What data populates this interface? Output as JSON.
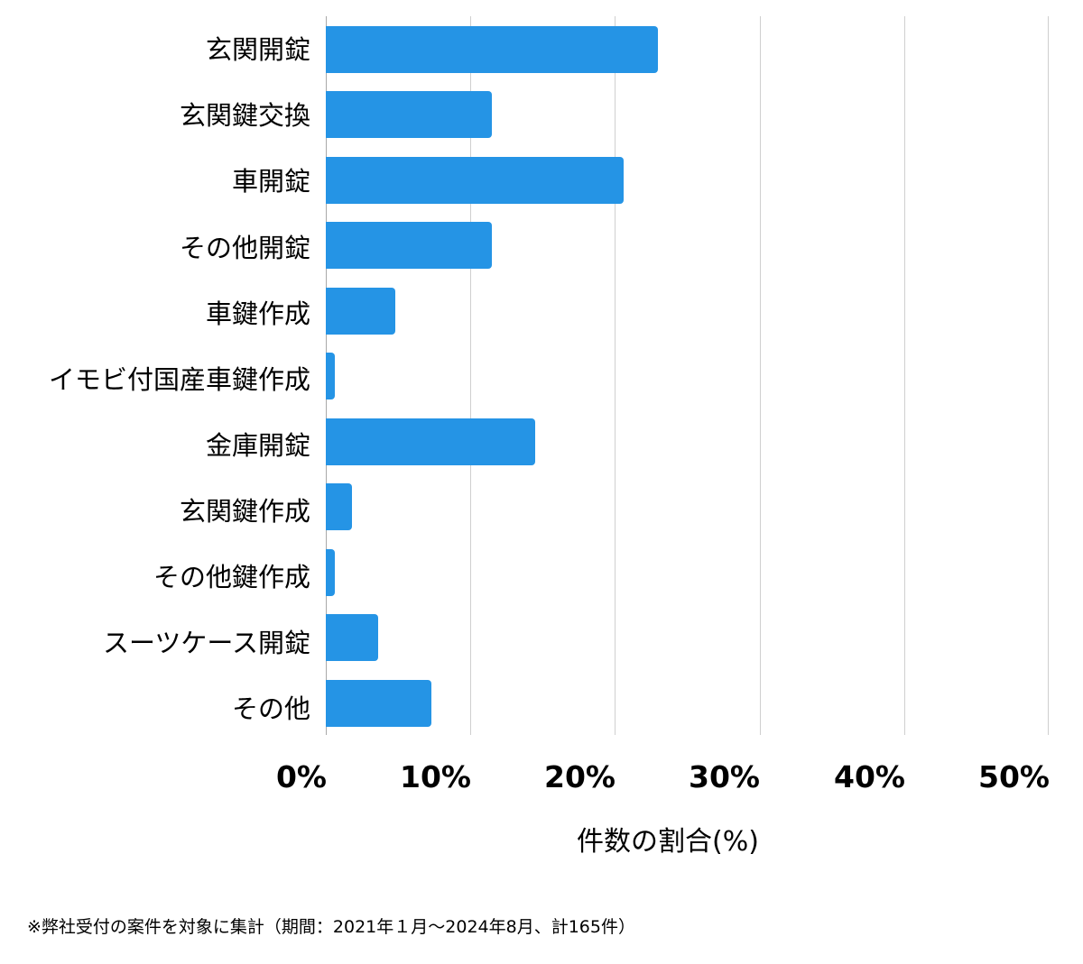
{
  "chart_data": {
    "type": "bar",
    "orientation": "horizontal",
    "title": "",
    "xlabel": "件数の割合(%)",
    "ylabel": "",
    "xlim": [
      0,
      50
    ],
    "x_ticks": [
      "0%",
      "10%",
      "20%",
      "30%",
      "40%",
      "50%"
    ],
    "grid": true,
    "legend": null,
    "categories": [
      "玄関開錠",
      "玄関鍵交換",
      "車開錠",
      "その他開錠",
      "車鍵作成",
      "イモビ付国産車鍵作成",
      "金庫開錠",
      "玄関鍵作成",
      "その他鍵作成",
      "スーツケース開錠",
      "その他"
    ],
    "values": [
      23.0,
      11.5,
      20.6,
      11.5,
      4.8,
      0.6,
      14.5,
      1.8,
      0.6,
      3.6,
      7.3
    ],
    "bar_color": "#2594e5",
    "footnote": "※弊社受付の案件を対象に集計（期間：2021年１月〜2024年8月、計165件）"
  },
  "labels": {
    "cat0": "玄関開錠",
    "cat1": "玄関鍵交換",
    "cat2": "車開錠",
    "cat3": "その他開錠",
    "cat4": "車鍵作成",
    "cat5": "イモビ付国産車鍵作成",
    "cat6": "金庫開錠",
    "cat7": "玄関鍵作成",
    "cat8": "その他鍵作成",
    "cat9": "スーツケース開錠",
    "cat10": "その他",
    "tick0": "0%",
    "tick1": "10%",
    "tick2": "20%",
    "tick3": "30%",
    "tick4": "40%",
    "tick5": "50%",
    "xlabel": "件数の割合(%)",
    "footnote": "※弊社受付の案件を対象に集計（期間：2021年１月〜2024年8月、計165件）"
  }
}
